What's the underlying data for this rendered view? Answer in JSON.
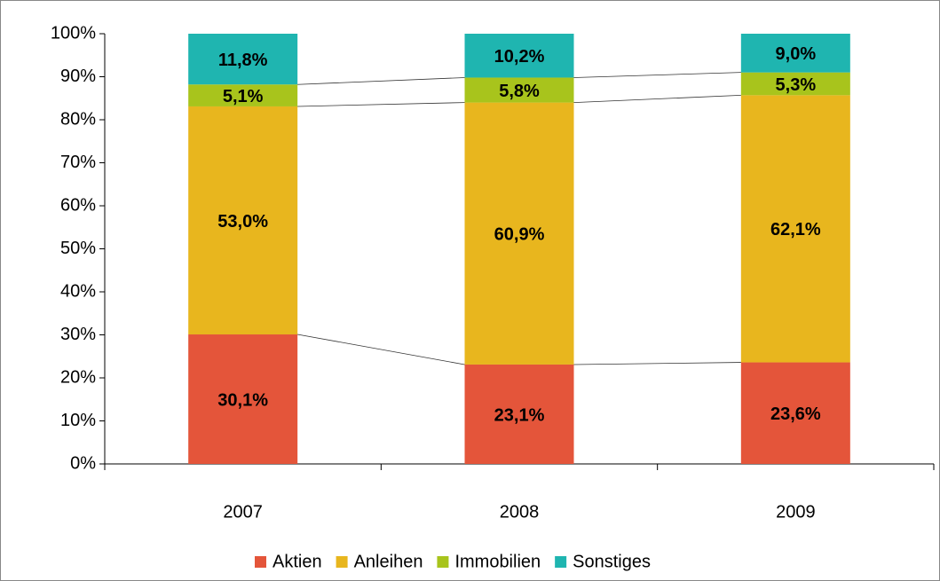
{
  "chart_data": {
    "type": "stacked_bar",
    "categories": [
      "2007",
      "2008",
      "2009"
    ],
    "series": [
      {
        "name": "Aktien",
        "color": "#e4553a",
        "values": [
          30.1,
          23.1,
          23.6
        ],
        "value_labels": [
          "30,1%",
          "23,1%",
          "23,6%"
        ]
      },
      {
        "name": "Anleihen",
        "color": "#e8b61e",
        "values": [
          53.0,
          60.9,
          62.1
        ],
        "value_labels": [
          "53,0%",
          "60,9%",
          "62,1%"
        ]
      },
      {
        "name": "Immobilien",
        "color": "#a8c41c",
        "values": [
          5.1,
          5.8,
          5.3
        ],
        "value_labels": [
          "5,1%",
          "5,8%",
          "5,3%"
        ]
      },
      {
        "name": "Sonstiges",
        "color": "#1fb5b0",
        "values": [
          11.8,
          10.2,
          9.0
        ],
        "value_labels": [
          "11,8%",
          "10,2%",
          "9,0%"
        ]
      }
    ],
    "ylim": [
      0,
      100
    ],
    "yticks": [
      {
        "value": 0,
        "label": "0%"
      },
      {
        "value": 10,
        "label": "10%"
      },
      {
        "value": 20,
        "label": "20%"
      },
      {
        "value": 30,
        "label": "30%"
      },
      {
        "value": 40,
        "label": "40%"
      },
      {
        "value": 50,
        "label": "50%"
      },
      {
        "value": 60,
        "label": "60%"
      },
      {
        "value": 70,
        "label": "70%"
      },
      {
        "value": 80,
        "label": "80%"
      },
      {
        "value": 90,
        "label": "90%"
      },
      {
        "value": 100,
        "label": "100%"
      }
    ],
    "legend": "bottom"
  }
}
